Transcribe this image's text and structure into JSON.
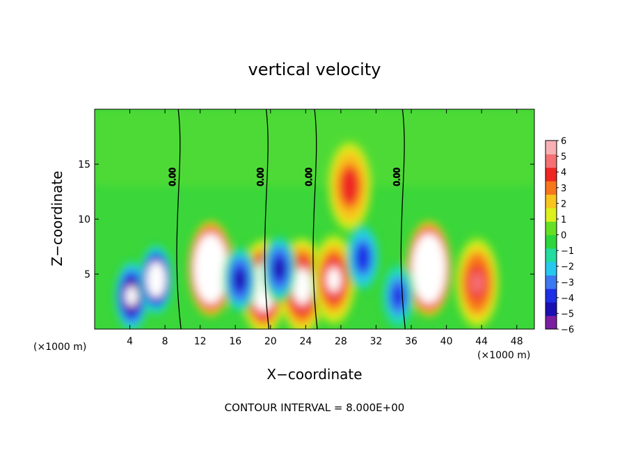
{
  "chart_data": {
    "type": "heatmap",
    "title": "vertical velocity",
    "xlabel": "X−coordinate",
    "ylabel": "Z−coordinate",
    "x_unit_label": "(×1000 m)",
    "xlim": [
      0,
      50
    ],
    "ylim": [
      0,
      20
    ],
    "x_ticks": [
      4,
      8,
      12,
      16,
      20,
      24,
      28,
      32,
      36,
      40,
      44,
      48
    ],
    "y_ticks": [
      5,
      10,
      15
    ],
    "colorbar": {
      "range": [
        -6,
        6
      ],
      "ticks": [
        6,
        5,
        4,
        3,
        2,
        1,
        0,
        -1,
        -2,
        -3,
        -4,
        -5,
        -6
      ],
      "tick_labels": [
        "6",
        "5",
        "4",
        "3",
        "2",
        "1",
        "0",
        "−1",
        "−2",
        "−3",
        "−4",
        "−5",
        "−6"
      ],
      "colors": [
        "#7a1fa0",
        "#1a0fb0",
        "#1e2fe6",
        "#3c78f0",
        "#26c8ee",
        "#22dca0",
        "#2cd63c",
        "#66e025",
        "#dcf01e",
        "#f7c51d",
        "#f7761c",
        "#ef2622",
        "#f47072",
        "#f7b1b5"
      ]
    },
    "contour_label": "0.00",
    "contour_interval_text": "CONTOUR INTERVAL = 8.000E+00",
    "features": [
      {
        "kind": "updraft",
        "x": 13.2,
        "z": 5.5,
        "value": 14
      },
      {
        "kind": "updraft",
        "x": 19.2,
        "z": 3.8,
        "value": 9
      },
      {
        "kind": "updraft",
        "x": 23.6,
        "z": 3.9,
        "value": 7
      },
      {
        "kind": "updraft",
        "x": 27.2,
        "z": 4.5,
        "value": 6
      },
      {
        "kind": "updraft",
        "x": 38.0,
        "z": 5.5,
        "value": 14
      },
      {
        "kind": "updraft",
        "x": 43.5,
        "z": 4.2,
        "value": 5
      },
      {
        "kind": "updraft",
        "x": 29.0,
        "z": 13.0,
        "value": 4.5
      },
      {
        "kind": "downdraft",
        "x": 4.2,
        "z": 3.0,
        "value": -7
      },
      {
        "kind": "downdraft",
        "x": 7.0,
        "z": 4.5,
        "value": -9
      },
      {
        "kind": "downdraft",
        "x": 16.5,
        "z": 4.5,
        "value": -5
      },
      {
        "kind": "downdraft",
        "x": 21.0,
        "z": 5.5,
        "value": -5
      },
      {
        "kind": "downdraft",
        "x": 30.5,
        "z": 6.5,
        "value": -4.5
      },
      {
        "kind": "downdraft",
        "x": 34.5,
        "z": 3.0,
        "value": -4
      }
    ]
  }
}
